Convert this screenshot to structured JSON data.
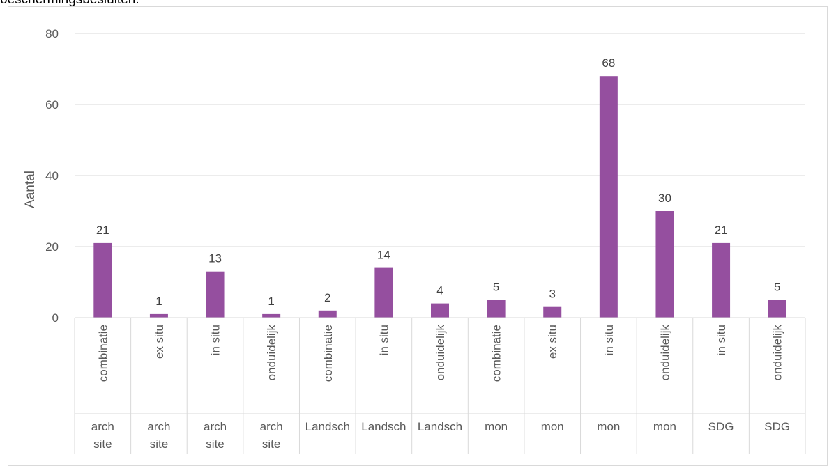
{
  "caption": "beschermingsbesluiten.",
  "chart_data": {
    "type": "bar",
    "title": "",
    "ylabel": "Aantal",
    "xlabel": "",
    "ylim": [
      0,
      80
    ],
    "yticks": [
      0,
      20,
      40,
      60,
      80
    ],
    "grid": true,
    "bar_color": "#954f9f",
    "categories": [
      {
        "sub": "combinatie",
        "group": [
          "arch",
          "site"
        ]
      },
      {
        "sub": "ex situ",
        "group": [
          "arch",
          "site"
        ]
      },
      {
        "sub": "in situ",
        "group": [
          "arch",
          "site"
        ]
      },
      {
        "sub": "onduidelijk",
        "group": [
          "arch",
          "site"
        ]
      },
      {
        "sub": "combinatie",
        "group": [
          "Landsch"
        ]
      },
      {
        "sub": "in situ",
        "group": [
          "Landsch"
        ]
      },
      {
        "sub": "onduidelijk",
        "group": [
          "Landsch"
        ]
      },
      {
        "sub": "combinatie",
        "group": [
          "mon"
        ]
      },
      {
        "sub": "ex situ",
        "group": [
          "mon"
        ]
      },
      {
        "sub": "in situ",
        "group": [
          "mon"
        ]
      },
      {
        "sub": "onduidelijk",
        "group": [
          "mon"
        ]
      },
      {
        "sub": "in situ",
        "group": [
          "SDG"
        ]
      },
      {
        "sub": "onduidelijk",
        "group": [
          "SDG"
        ]
      }
    ],
    "values": [
      21,
      1,
      13,
      1,
      2,
      14,
      4,
      5,
      3,
      68,
      30,
      21,
      5
    ]
  }
}
